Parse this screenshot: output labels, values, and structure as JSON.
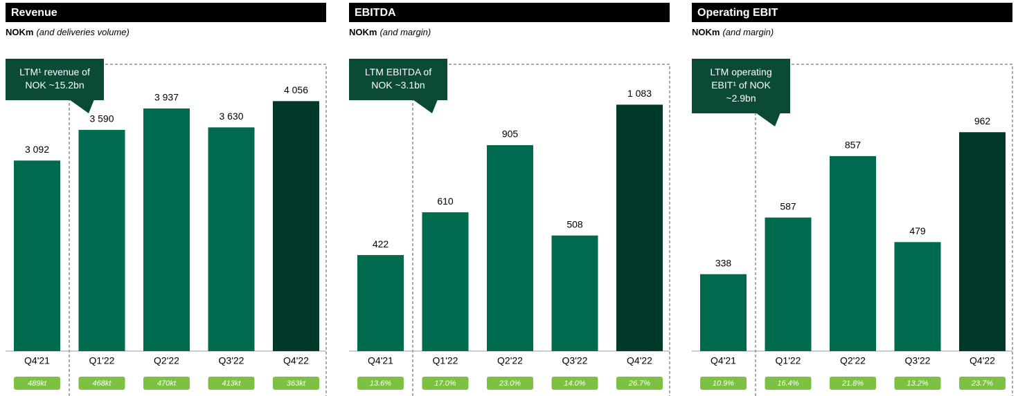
{
  "chart_data": [
    {
      "type": "bar",
      "title": "Revenue",
      "subtitle_unit": "NOKm",
      "subtitle_note": "(and deliveries volume)",
      "categories": [
        "Q4'21",
        "Q1'22",
        "Q2'22",
        "Q3'22",
        "Q4'22"
      ],
      "values": [
        3092,
        3590,
        3937,
        3630,
        4056
      ],
      "value_labels": [
        "3 092",
        "3 590",
        "3 937",
        "3 630",
        "4 056"
      ],
      "bottom_labels": [
        "489kt",
        "468kt",
        "470kt",
        "413kt",
        "363kt"
      ],
      "colors": [
        "#006a4f",
        "#006a4f",
        "#006a4f",
        "#006a4f",
        "#00382a"
      ],
      "ylim": [
        0,
        4800
      ],
      "annotation": [
        "LTM¹ revenue of",
        "NOK ~15.2bn"
      ]
    },
    {
      "type": "bar",
      "title": "EBITDA",
      "subtitle_unit": "NOKm",
      "subtitle_note": "(and margin)",
      "categories": [
        "Q4'21",
        "Q1'22",
        "Q2'22",
        "Q3'22",
        "Q4'22"
      ],
      "values": [
        422,
        610,
        905,
        508,
        1083
      ],
      "value_labels": [
        "422",
        "610",
        "905",
        "508",
        "1 083"
      ],
      "bottom_labels": [
        "13.6%",
        "17.0%",
        "23.0%",
        "14.0%",
        "26.7%"
      ],
      "colors": [
        "#006a4f",
        "#006a4f",
        "#006a4f",
        "#006a4f",
        "#00382a"
      ],
      "ylim": [
        0,
        1300
      ],
      "annotation": [
        "LTM EBITDA of",
        "NOK ~3.1bn"
      ]
    },
    {
      "type": "bar",
      "title": "Operating EBIT",
      "subtitle_unit": "NOKm",
      "subtitle_note": "(and margin)",
      "categories": [
        "Q4'21",
        "Q1'22",
        "Q2'22",
        "Q3'22",
        "Q4'22"
      ],
      "values": [
        338,
        587,
        857,
        479,
        962
      ],
      "value_labels": [
        "338",
        "587",
        "857",
        "479",
        "962"
      ],
      "bottom_labels": [
        "10.9%",
        "16.4%",
        "21.8%",
        "13.2%",
        "23.7%"
      ],
      "colors": [
        "#006a4f",
        "#006a4f",
        "#006a4f",
        "#006a4f",
        "#00382a"
      ],
      "ylim": [
        0,
        1300
      ],
      "annotation": [
        "LTM operating",
        "EBIT¹ of NOK",
        "~2.9bn"
      ]
    }
  ]
}
